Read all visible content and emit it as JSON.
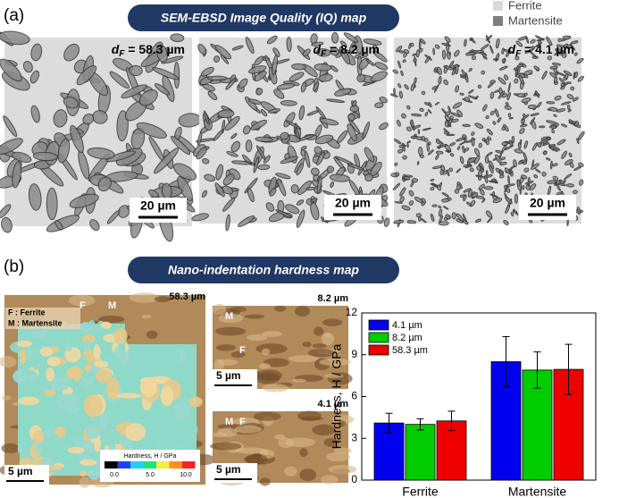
{
  "panel_a": {
    "label": "(a)",
    "banner": "SEM-EBSD Image Quality (IQ) map",
    "legend": [
      "Ferrite",
      "Martensite"
    ],
    "images": [
      {
        "symbol": "d",
        "subscript": "F",
        "text": " = 58.3 µm",
        "scale": "20 µm"
      },
      {
        "symbol": "d",
        "subscript": "F",
        "text": " = 8.2 µm",
        "scale": "20 µm"
      },
      {
        "symbol": "d",
        "subscript": "F",
        "text": " = 4.1 µm",
        "scale": "20 µm"
      }
    ]
  },
  "panel_b": {
    "label": "(b)",
    "banner": "Nano-indentation hardness map",
    "maps": [
      {
        "title": "58.3 µm",
        "scale": "5 µm",
        "key": [
          "F : Ferrite",
          "M : Martensite"
        ],
        "phases": [
          "F",
          "M"
        ]
      },
      {
        "title": "8.2 µm",
        "scale": "5 µm",
        "phases": [
          "M",
          "F"
        ]
      },
      {
        "title": "4.1 µm",
        "scale": "5 µm",
        "phases": [
          "M",
          "F"
        ]
      }
    ],
    "colorbar": {
      "title": "Hardness, H / GPa",
      "ticks": [
        "0.0",
        "5.0",
        "10.0"
      ]
    }
  },
  "chart_data": {
    "type": "bar",
    "ylabel": "Hardness, H / GPa",
    "categories": [
      "Ferrite",
      "Martensite"
    ],
    "series": [
      {
        "name": "4.1 µm",
        "color": "#0000ee",
        "values": [
          4.1,
          8.5
        ],
        "errors": [
          0.7,
          1.8
        ]
      },
      {
        "name": "8.2 µm",
        "color": "#00cc00",
        "values": [
          4.0,
          7.9
        ],
        "errors": [
          0.4,
          1.3
        ]
      },
      {
        "name": "58.3 µm",
        "color": "#ee0000",
        "values": [
          4.25,
          7.95
        ],
        "errors": [
          0.7,
          1.8
        ]
      }
    ],
    "ylim": [
      0,
      12
    ],
    "yticks": [
      0,
      3,
      6,
      9,
      12
    ],
    "legend": "upper left"
  }
}
